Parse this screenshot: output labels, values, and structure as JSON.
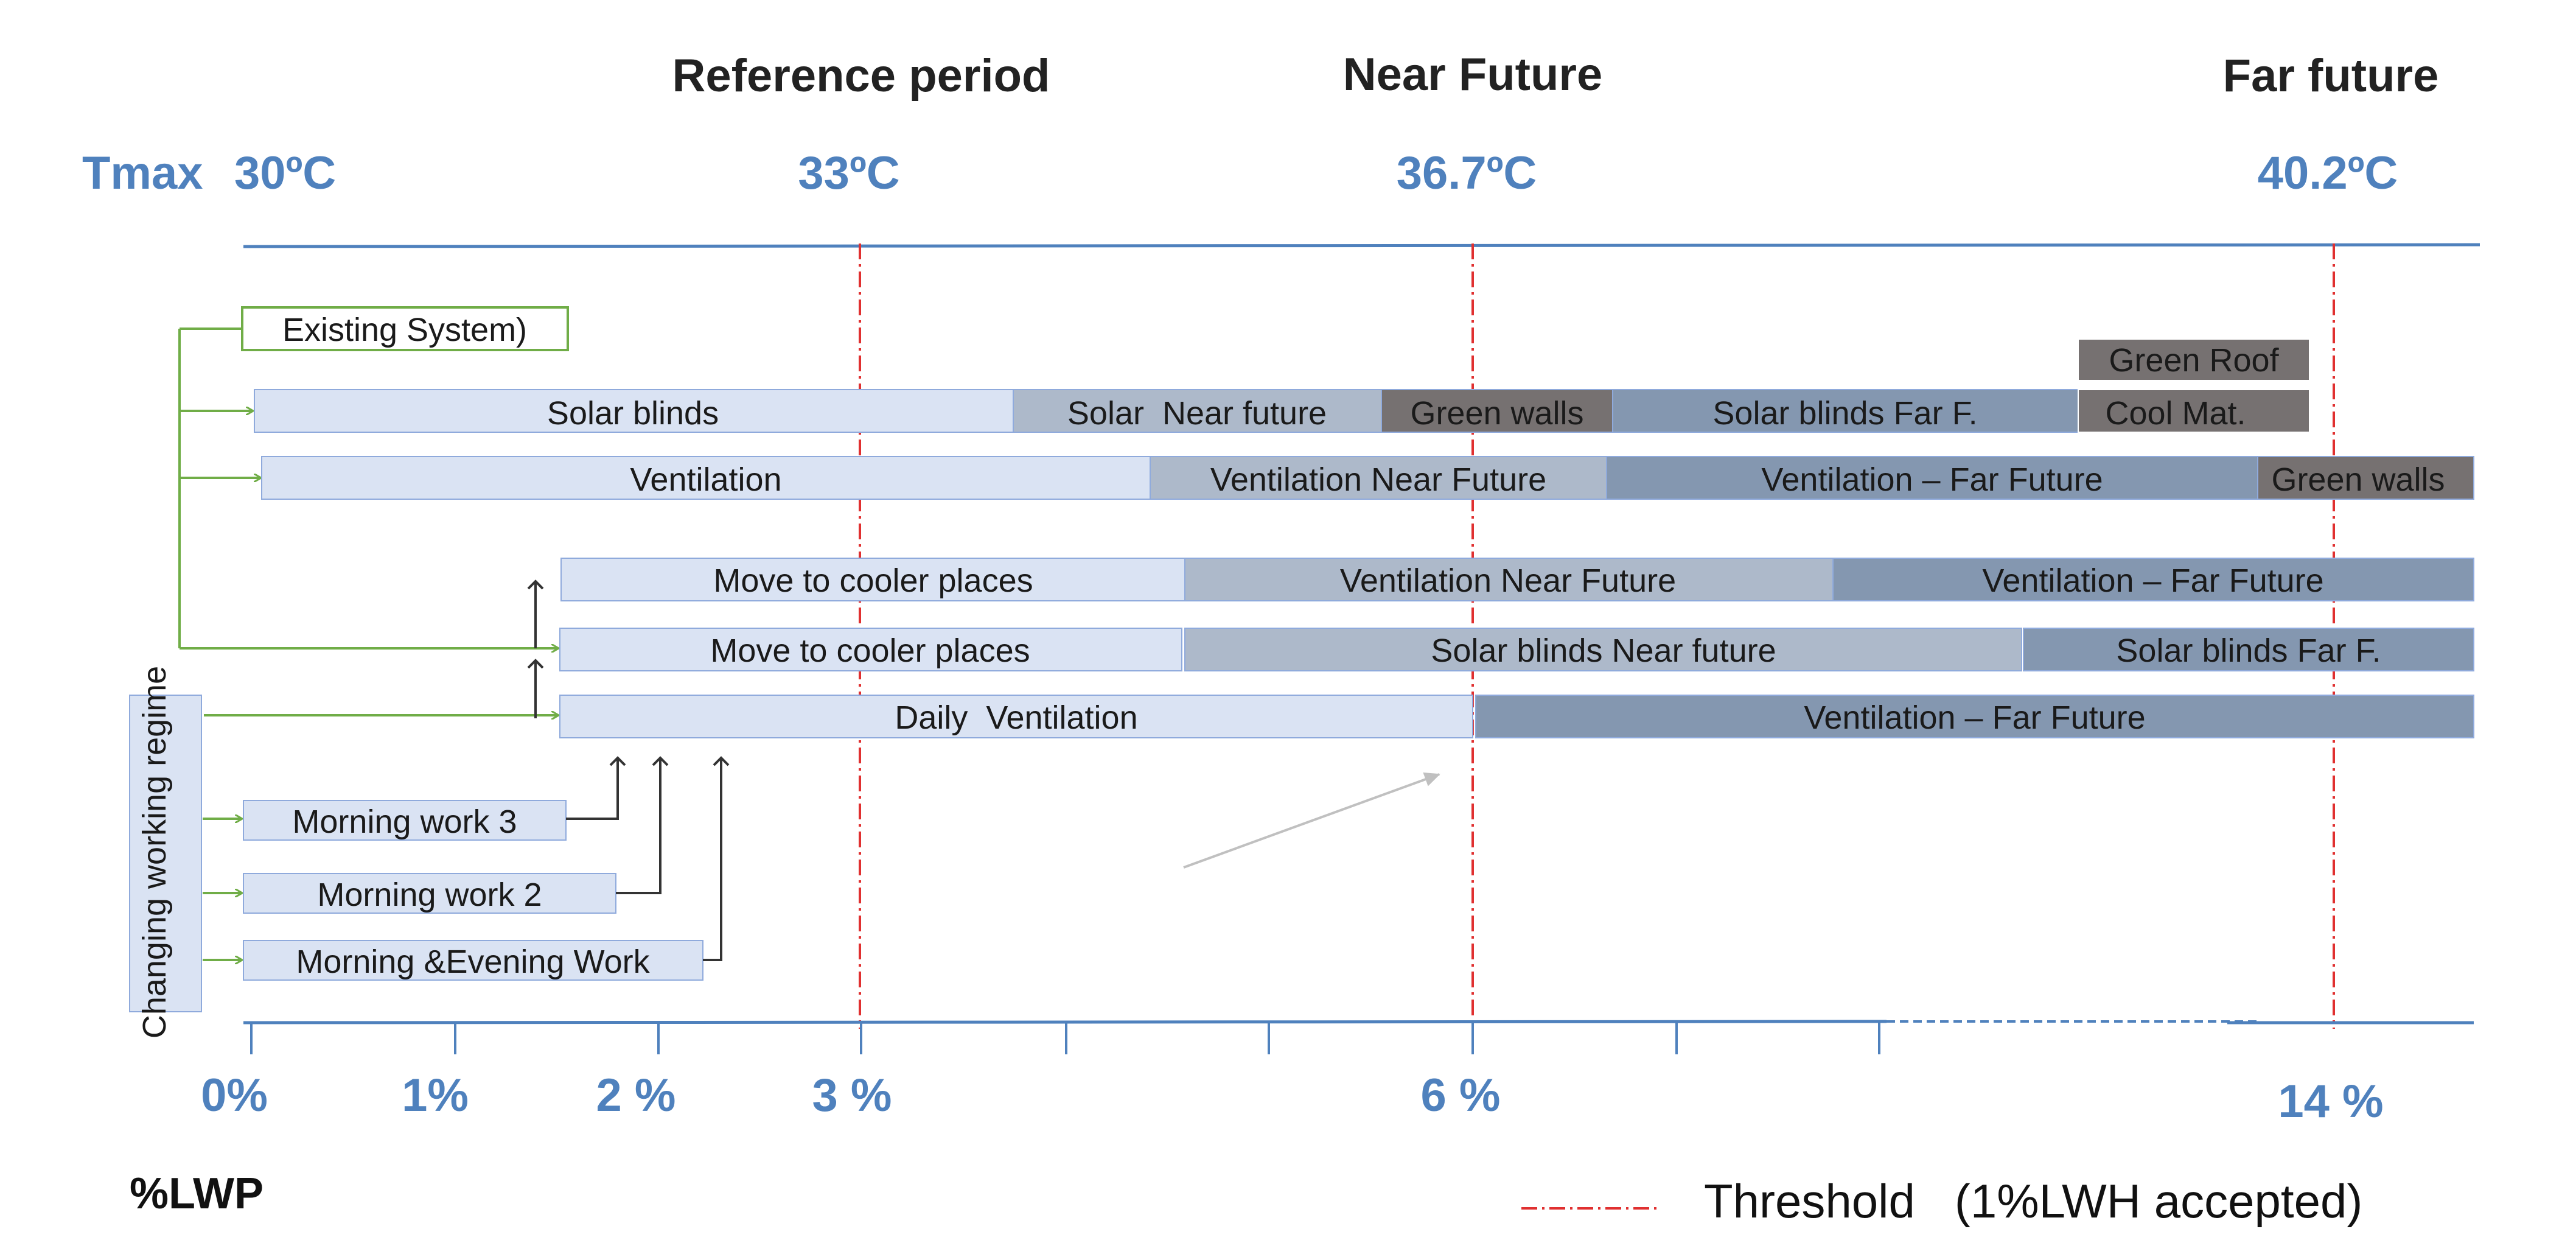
{
  "periods": {
    "reference": "Reference period",
    "near": "Near Future",
    "far": "Far future"
  },
  "tmax": {
    "label": "Tmax",
    "t1": "30ºC",
    "t2": "33ºC",
    "t3": "36.7ºC",
    "t4": "40.2ºC"
  },
  "colors": {
    "light": "#dae3f3",
    "mid": "#adb9ca",
    "dark": "#8497b0",
    "grey": "#767171",
    "axis": "#4f81bd",
    "threshold": "#e03030",
    "arrow_green": "#70ad47"
  },
  "bars": {
    "existing": "Existing System)",
    "green_roof": "Green Roof",
    "solar_blinds": "Solar blinds",
    "solar_near": "Solar  Near future",
    "green_walls_1": "Green walls",
    "solar_blinds_far": "Solar blinds Far F.",
    "cool_mat": "Cool Mat.",
    "ventilation": "Ventilation",
    "ventilation_near": "Ventilation Near Future",
    "ventilation_far": "Ventilation – Far Future",
    "green_walls_2": "Green walls",
    "move_cooler_1": "Move to cooler places",
    "ventilation_near_2": "Ventilation Near Future",
    "ventilation_far_2": "Ventilation – Far Future",
    "move_cooler_2": "Move to cooler places",
    "solar_blinds_near_2": "Solar blinds Near future",
    "solar_blinds_far_2": "Solar blinds Far F.",
    "daily_ventilation": "Daily  Ventilation",
    "ventilation_far_3": "Ventilation – Far Future",
    "morning_3": "Morning work 3",
    "morning_2": "Morning work 2",
    "morning_evening": "Morning &Evening Work"
  },
  "side_box": "Changing working regime",
  "x_axis": {
    "ticks": [
      "0%",
      "1%",
      "2 %",
      "3 %",
      "6 %",
      "14 %"
    ],
    "title": "%LWP"
  },
  "legend": {
    "threshold": "Threshold   (1%LWH accepted)"
  }
}
